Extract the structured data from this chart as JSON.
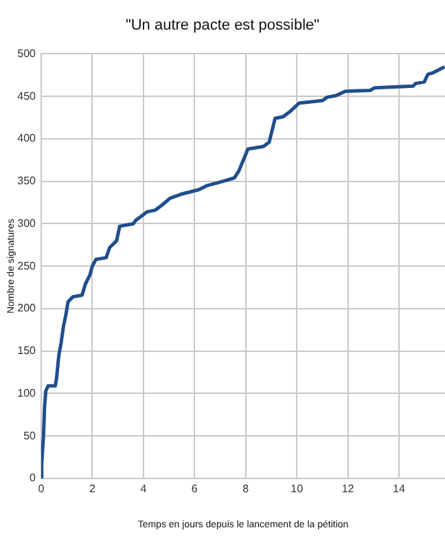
{
  "chart_data": {
    "type": "line",
    "title": "\"Un autre pacte est possible\"",
    "xlabel": "Temps en jours depuis le lancement de la pétition",
    "ylabel": "Nombre de signatures",
    "xlim": [
      0,
      15.8
    ],
    "xticks": [
      0,
      2,
      4,
      6,
      8,
      10,
      12,
      14
    ],
    "ylim": [
      0,
      500
    ],
    "yticks": [
      0,
      50,
      100,
      150,
      200,
      250,
      300,
      350,
      400,
      450,
      500
    ],
    "grid": true,
    "legend": false,
    "marker": "none",
    "line_style": "solid",
    "series": [
      {
        "color": "#1f4e8c",
        "x": [
          0,
          0.02,
          0.09,
          0.13,
          0.18,
          0.27,
          0.55,
          0.6,
          0.69,
          0.78,
          0.87,
          0.96,
          1.05,
          1.24,
          1.6,
          1.73,
          1.91,
          2.0,
          2.14,
          2.54,
          2.68,
          2.95,
          3.07,
          3.6,
          3.7,
          4.14,
          4.46,
          4.73,
          5.04,
          5.5,
          6.16,
          6.5,
          7.0,
          7.56,
          7.73,
          8.09,
          8.7,
          8.92,
          9.15,
          9.47,
          9.77,
          10.09,
          11.0,
          11.19,
          11.54,
          11.9,
          12.87,
          13.04,
          14.55,
          14.64,
          14.99,
          15.13,
          15.35,
          15.73
        ],
        "values": [
          0,
          18,
          50,
          84,
          103,
          109,
          109,
          118,
          145,
          160,
          179,
          192,
          208,
          214,
          216,
          229,
          240,
          250,
          258,
          260,
          272,
          280,
          297,
          300,
          304,
          314,
          316,
          322,
          330,
          335,
          340,
          345,
          349,
          354,
          362,
          388,
          391,
          396,
          424,
          426,
          433,
          442,
          445,
          449,
          451,
          456,
          457,
          460,
          462,
          465,
          467,
          476,
          478,
          484
        ]
      }
    ]
  }
}
